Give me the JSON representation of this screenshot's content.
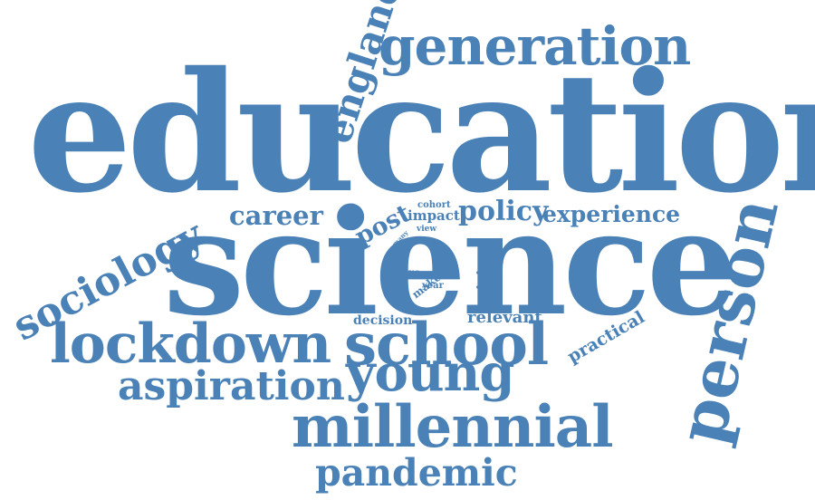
{
  "color": "#4a81b6",
  "words": {
    "education": "education",
    "science": "science",
    "generation": "generation",
    "england": "england",
    "sociology": "sociology",
    "career": "career",
    "post": "post",
    "cohort": "cohort",
    "impact": "impact",
    "policy": "policy",
    "experience": "experience",
    "view": "view",
    "many": "many",
    "life": "life",
    "person": "person",
    "more": "more",
    "make": "make",
    "year": "year",
    "vision": "vision",
    "decision": "decision",
    "relevant": "relevant",
    "practical": "practical",
    "lockdown": "lockdown",
    "school": "school",
    "aspiration": "aspiration",
    "young": "young",
    "millennial": "millennial",
    "pandemic": "pandemic"
  }
}
